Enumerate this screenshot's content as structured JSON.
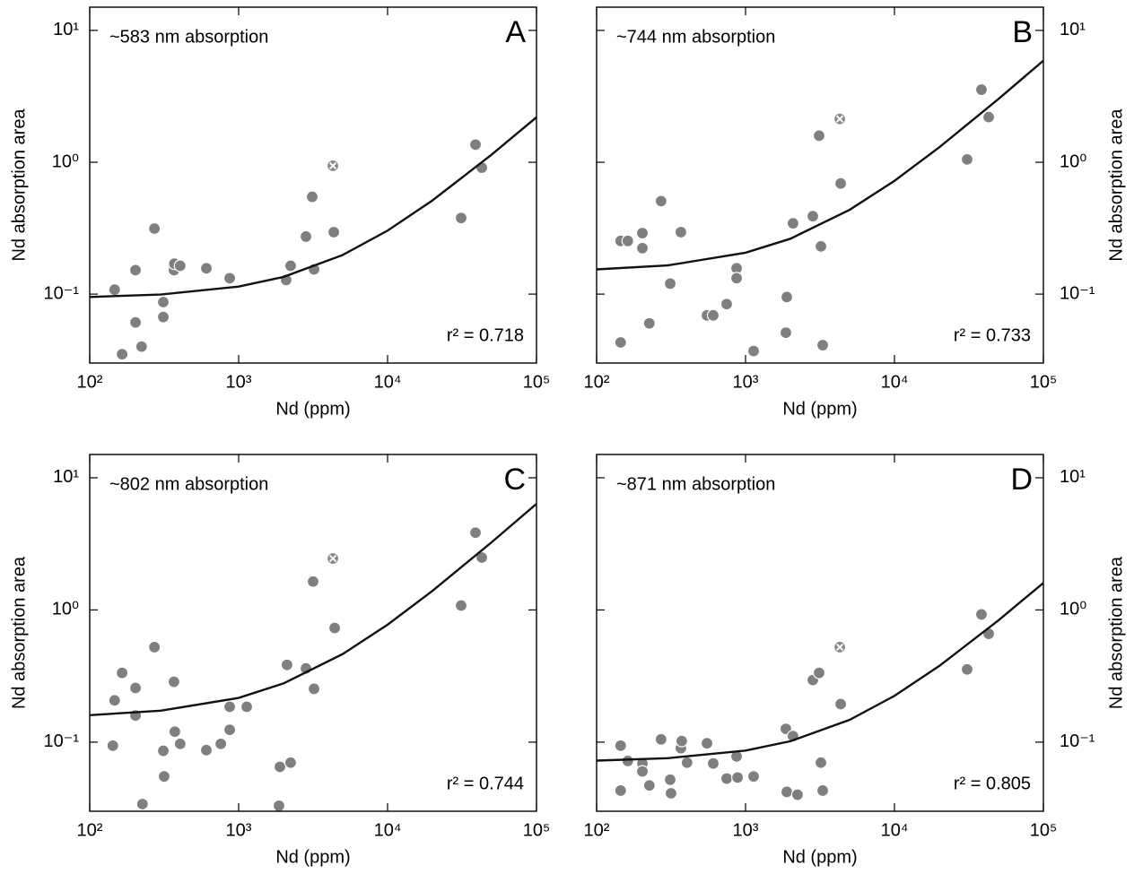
{
  "chart_data": [
    {
      "type": "scatter",
      "annotation": "~583 nm absorption",
      "panel_label": "A",
      "r_squared_label": "r² = 0.718",
      "xlabel": "Nd (ppm)",
      "ylabel": "Nd absorption area",
      "yaxis_side": "left",
      "log_x": true,
      "log_y": true,
      "xlim": [
        100,
        100000
      ],
      "ylim": [
        0.03,
        15
      ],
      "xticks": [
        {
          "value": 100,
          "label": "10²"
        },
        {
          "value": 1000,
          "label": "10³"
        },
        {
          "value": 10000,
          "label": "10⁴"
        },
        {
          "value": 100000,
          "label": "10⁵"
        }
      ],
      "yticks": [
        {
          "value": 0.1,
          "label": "10⁻¹"
        },
        {
          "value": 1,
          "label": "10⁰"
        },
        {
          "value": 10,
          "label": "10¹"
        }
      ],
      "color": "#7f7f7f",
      "x": [
        147,
        165,
        203,
        203,
        223,
        272,
        312,
        312,
        368,
        370,
        405,
        607,
        871,
        2084,
        2234,
        2831,
        3119,
        3209,
        4355,
        31190,
        38940,
        42930
      ],
      "values": [
        0.108,
        0.035,
        0.152,
        0.061,
        0.04,
        0.314,
        0.067,
        0.087,
        0.152,
        0.17,
        0.164,
        0.157,
        0.132,
        0.128,
        0.164,
        0.273,
        0.547,
        0.154,
        0.295,
        0.378,
        1.36,
        0.91
      ],
      "outlier": {
        "x": 4295,
        "y": 0.94
      },
      "fit": {
        "color": "#111111",
        "x": [
          100,
          300,
          1000,
          2000,
          5000,
          10000,
          20000,
          50000,
          100000
        ],
        "values": [
          0.0951,
          0.0993,
          0.114,
          0.135,
          0.198,
          0.303,
          0.513,
          1.143,
          2.193
        ]
      }
    },
    {
      "type": "scatter",
      "annotation": "~744 nm absorption",
      "panel_label": "B",
      "r_squared_label": "r² = 0.733",
      "xlabel": "Nd (ppm)",
      "ylabel": "Nd absorption area",
      "yaxis_side": "right",
      "log_x": true,
      "log_y": true,
      "xlim": [
        100,
        100000
      ],
      "ylim": [
        0.03,
        15
      ],
      "xticks": [
        {
          "value": 100,
          "label": "10²"
        },
        {
          "value": 1000,
          "label": "10³"
        },
        {
          "value": 10000,
          "label": "10⁴"
        },
        {
          "value": 100000,
          "label": "10⁵"
        }
      ],
      "yticks": [
        {
          "value": 0.1,
          "label": "10⁻¹"
        },
        {
          "value": 1,
          "label": "10⁰"
        },
        {
          "value": 10,
          "label": "10¹"
        }
      ],
      "color": "#7f7f7f",
      "x": [
        145,
        145,
        162,
        203,
        203,
        226,
        271,
        312,
        368,
        551,
        607,
        747,
        871,
        871,
        1133,
        1866,
        1893,
        2084,
        2831,
        3119,
        3209,
        3298,
        4355,
        30760,
        38390,
        42930
      ],
      "values": [
        0.043,
        0.253,
        0.253,
        0.29,
        0.223,
        0.06,
        0.507,
        0.12,
        0.295,
        0.069,
        0.069,
        0.084,
        0.157,
        0.132,
        0.037,
        0.051,
        0.095,
        0.344,
        0.39,
        1.59,
        0.23,
        0.041,
        0.69,
        1.05,
        3.55,
        2.2
      ],
      "outlier": {
        "x": 4295,
        "y": 2.13
      },
      "fit": {
        "color": "#111111",
        "x": [
          100,
          300,
          1000,
          2000,
          5000,
          10000,
          20000,
          50000,
          100000
        ],
        "values": [
          0.154,
          0.165,
          0.206,
          0.263,
          0.436,
          0.723,
          1.298,
          3.023,
          5.898
        ]
      }
    },
    {
      "type": "scatter",
      "annotation": "~802 nm absorption",
      "panel_label": "C",
      "r_squared_label": "r² = 0.744",
      "xlabel": "Nd (ppm)",
      "ylabel": "Nd absorption area",
      "yaxis_side": "left",
      "log_x": true,
      "log_y": true,
      "xlim": [
        100,
        100000
      ],
      "ylim": [
        0.03,
        15
      ],
      "xticks": [
        {
          "value": 100,
          "label": "10²"
        },
        {
          "value": 1000,
          "label": "10³"
        },
        {
          "value": 10000,
          "label": "10⁴"
        },
        {
          "value": 100000,
          "label": "10⁵"
        }
      ],
      "yticks": [
        {
          "value": 0.1,
          "label": "10⁻¹"
        },
        {
          "value": 1,
          "label": "10⁰"
        },
        {
          "value": 10,
          "label": "10¹"
        }
      ],
      "color": "#7f7f7f",
      "x": [
        143,
        147,
        165,
        203,
        203,
        226,
        272,
        312,
        316,
        368,
        373,
        405,
        607,
        759,
        871,
        871,
        1133,
        1866,
        1893,
        2234,
        2113,
        2831,
        3162,
        3209,
        4416,
        31190,
        38940,
        42930
      ],
      "values": [
        0.094,
        0.207,
        0.334,
        0.257,
        0.159,
        0.034,
        0.523,
        0.086,
        0.055,
        0.286,
        0.12,
        0.097,
        0.087,
        0.097,
        0.124,
        0.185,
        0.185,
        0.033,
        0.065,
        0.07,
        0.384,
        0.361,
        1.64,
        0.253,
        0.73,
        1.08,
        3.84,
        2.49
      ],
      "outlier": {
        "x": 4295,
        "y": 2.45
      },
      "fit": {
        "color": "#111111",
        "x": [
          100,
          300,
          1000,
          2000,
          5000,
          10000,
          20000,
          50000,
          100000
        ],
        "values": [
          0.16,
          0.173,
          0.216,
          0.278,
          0.464,
          0.774,
          1.394,
          3.254,
          6.354
        ]
      }
    },
    {
      "type": "scatter",
      "annotation": "~871 nm absorption",
      "panel_label": "D",
      "r_squared_label": "r² = 0.805",
      "xlabel": "Nd (ppm)",
      "ylabel": "Nd absorption area",
      "yaxis_side": "right",
      "log_x": true,
      "log_y": true,
      "xlim": [
        100,
        100000
      ],
      "ylim": [
        0.03,
        15
      ],
      "xticks": [
        {
          "value": 100,
          "label": "10²"
        },
        {
          "value": 1000,
          "label": "10³"
        },
        {
          "value": 10000,
          "label": "10⁴"
        },
        {
          "value": 100000,
          "label": "10⁵"
        }
      ],
      "yticks": [
        {
          "value": 0.1,
          "label": "10⁻¹"
        },
        {
          "value": 1,
          "label": "10⁰"
        },
        {
          "value": 10,
          "label": "10¹"
        }
      ],
      "color": "#7f7f7f",
      "x": [
        145,
        145,
        162,
        203,
        203,
        226,
        271,
        312,
        316,
        368,
        373,
        405,
        551,
        607,
        747,
        871,
        884,
        1133,
        1866,
        1893,
        2084,
        2234,
        2831,
        3119,
        3209,
        3298,
        4355,
        30760,
        38390,
        42930
      ],
      "values": [
        0.043,
        0.094,
        0.072,
        0.069,
        0.06,
        0.047,
        0.105,
        0.052,
        0.041,
        0.09,
        0.102,
        0.07,
        0.098,
        0.069,
        0.053,
        0.078,
        0.054,
        0.055,
        0.126,
        0.042,
        0.111,
        0.04,
        0.295,
        0.334,
        0.07,
        0.043,
        0.194,
        0.355,
        0.925,
        0.66
      ],
      "outlier": {
        "x": 4295,
        "y": 0.523
      },
      "fit": {
        "color": "#111111",
        "x": [
          100,
          300,
          1000,
          2000,
          5000,
          10000,
          20000,
          50000,
          100000
        ],
        "values": [
          0.0725,
          0.0756,
          0.0863,
          0.1016,
          0.1475,
          0.224,
          0.377,
          0.836,
          1.601
        ]
      }
    }
  ]
}
